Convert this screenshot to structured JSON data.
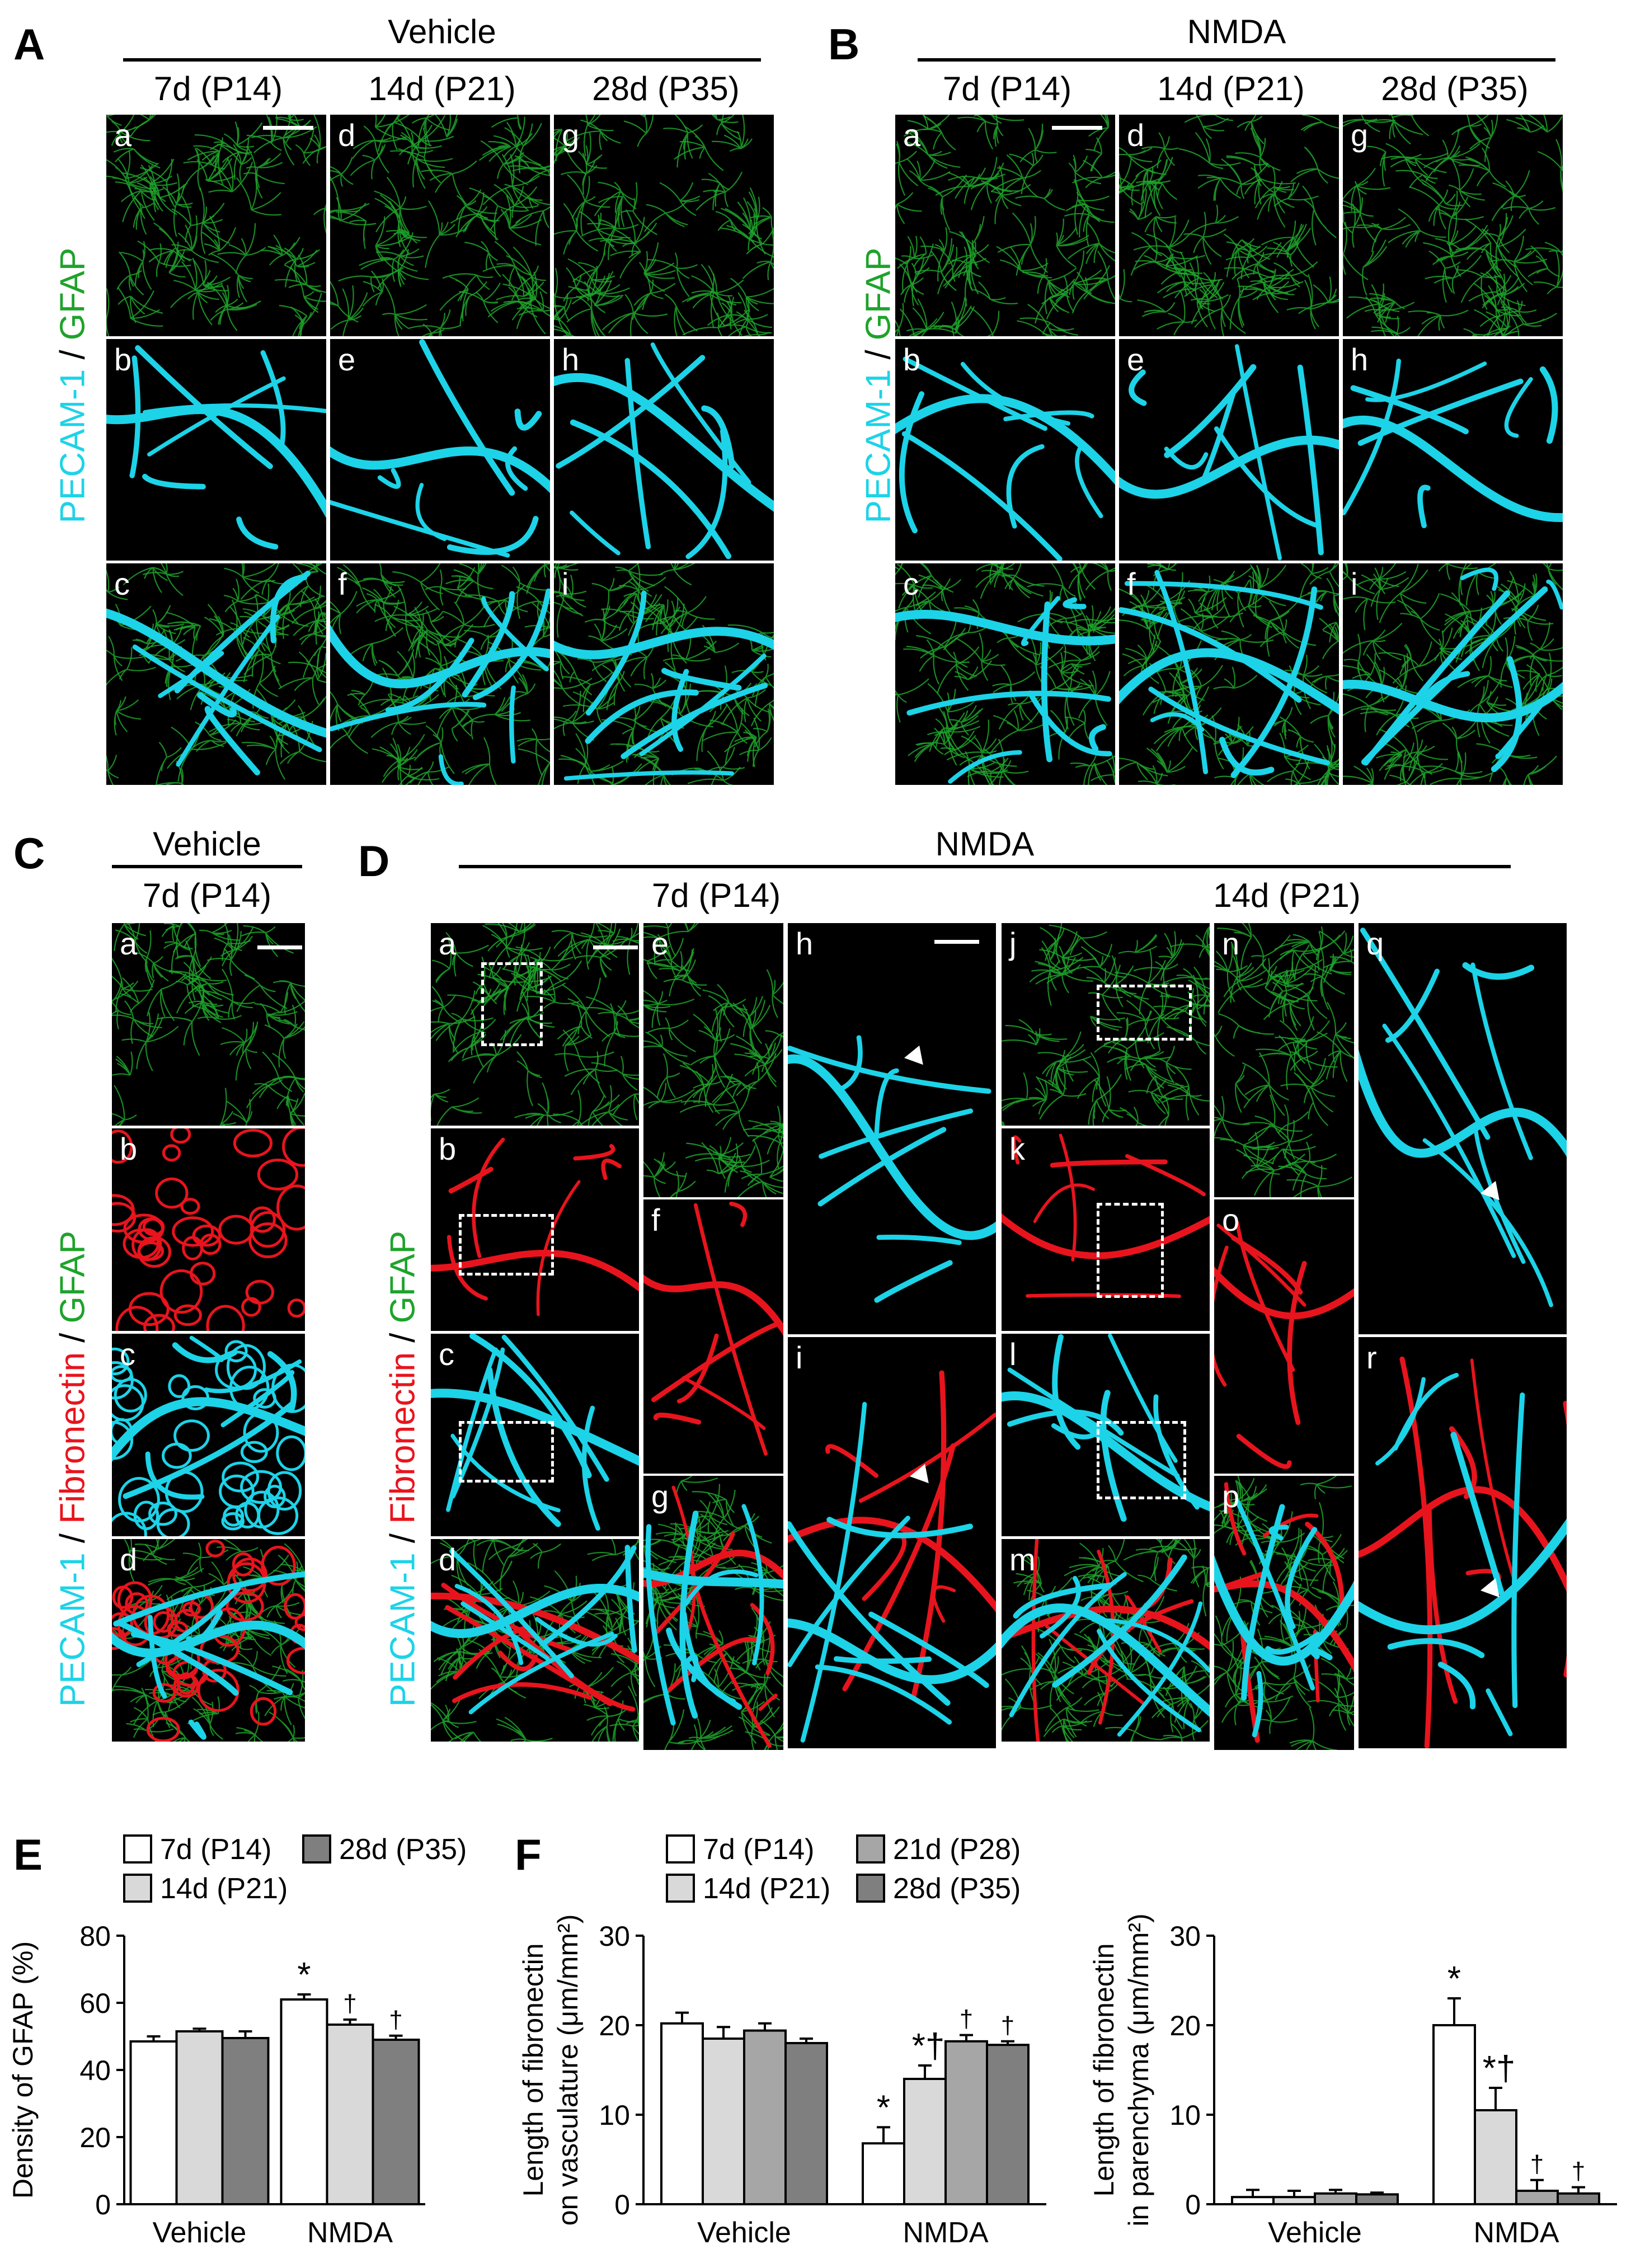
{
  "colors": {
    "pecam": "#1dd3e8",
    "gfap": "#1ea32b",
    "fibronectin": "#e8141d",
    "p14": "#ffffff",
    "p21": "#d9d9d9",
    "p28": "#a6a6a6",
    "p35": "#7f7f7f"
  },
  "panelA": {
    "label": "A",
    "group": "Vehicle",
    "cols": [
      "7d (P14)",
      "14d (P21)",
      "28d (P35)"
    ],
    "tiles": [
      [
        "a",
        "d",
        "g"
      ],
      [
        "b",
        "e",
        "h"
      ],
      [
        "c",
        "f",
        "i"
      ]
    ],
    "ylabel_pecam": "PECAM-1",
    "ylabel_sep": " / ",
    "ylabel_gfap": "GFAP"
  },
  "panelB": {
    "label": "B",
    "group": "NMDA",
    "cols": [
      "7d (P14)",
      "14d (P21)",
      "28d (P35)"
    ],
    "tiles": [
      [
        "a",
        "d",
        "g"
      ],
      [
        "b",
        "e",
        "h"
      ],
      [
        "c",
        "f",
        "i"
      ]
    ],
    "ylabel_pecam": "PECAM-1",
    "ylabel_sep": " / ",
    "ylabel_gfap": "GFAP"
  },
  "panelC": {
    "label": "C",
    "group": "Vehicle",
    "col": "7d (P14)",
    "tiles": [
      "a",
      "b",
      "c",
      "d"
    ],
    "ylabel_pecam": "PECAM-1",
    "ylabel_sep1": " / ",
    "ylabel_fib": "Fibronectin",
    "ylabel_sep2": " / ",
    "ylabel_gfap": "GFAP"
  },
  "panelD": {
    "label": "D",
    "group": "NMDA",
    "col1": "7d (P14)",
    "col2": "14d (P21)",
    "tiles": [
      "a",
      "b",
      "c",
      "d",
      "e",
      "f",
      "g",
      "h",
      "i",
      "j",
      "k",
      "l",
      "m",
      "n",
      "o",
      "p",
      "q",
      "r"
    ],
    "ylabel_pecam": "PECAM-1",
    "ylabel_sep1": " / ",
    "ylabel_fib": "Fibronectin",
    "ylabel_sep2": " / ",
    "ylabel_gfap": "GFAP"
  },
  "panelE": {
    "label": "E",
    "legend": [
      "7d (P14)",
      "28d (P35)",
      "14d (P21)"
    ]
  },
  "panelF": {
    "label": "F",
    "legend": [
      "7d (P14)",
      "21d (P28)",
      "14d (P21)",
      "28d (P35)"
    ]
  },
  "chart_data": [
    {
      "type": "bar",
      "ylabel": "Density of GFAP (%)",
      "ylim": [
        0,
        80
      ],
      "yticks": [
        0,
        20,
        40,
        60,
        80
      ],
      "categories": [
        "Vehicle",
        "NMDA"
      ],
      "series": [
        {
          "name": "7d (P14)",
          "values": [
            48.5,
            61
          ],
          "errors": [
            1.5,
            1.5
          ],
          "marks": [
            "",
            "*"
          ]
        },
        {
          "name": "14d (P21)",
          "values": [
            51.5,
            53.5
          ],
          "errors": [
            0.8,
            1.5
          ],
          "marks": [
            "",
            "†"
          ]
        },
        {
          "name": "28d (P35)",
          "values": [
            49.5,
            49
          ],
          "errors": [
            2,
            1.2
          ],
          "marks": [
            "",
            "†"
          ]
        }
      ]
    },
    {
      "type": "bar",
      "ylabel": "Length of fibronectin on vasculature (μm/mm²)",
      "ylim": [
        0,
        30
      ],
      "yticks": [
        0,
        10,
        20,
        30
      ],
      "categories": [
        "Vehicle",
        "NMDA"
      ],
      "series": [
        {
          "name": "7d (P14)",
          "values": [
            20.2,
            6.8
          ],
          "errors": [
            1.2,
            1.8
          ],
          "marks": [
            "",
            "*"
          ]
        },
        {
          "name": "14d (P21)",
          "values": [
            18.5,
            14
          ],
          "errors": [
            1.3,
            1.5
          ],
          "marks": [
            "",
            "*†"
          ]
        },
        {
          "name": "21d (P28)",
          "values": [
            19.4,
            18.2
          ],
          "errors": [
            0.8,
            0.7
          ],
          "marks": [
            "",
            "†"
          ]
        },
        {
          "name": "28d (P35)",
          "values": [
            18,
            17.8
          ],
          "errors": [
            0.5,
            0.4
          ],
          "marks": [
            "",
            "†"
          ]
        }
      ]
    },
    {
      "type": "bar",
      "ylabel": "Length of fibronectin in parenchyma (μm/mm²)",
      "ylim": [
        0,
        30
      ],
      "yticks": [
        0,
        10,
        20,
        30
      ],
      "categories": [
        "Vehicle",
        "NMDA"
      ],
      "series": [
        {
          "name": "7d (P14)",
          "values": [
            0.8,
            20
          ],
          "errors": [
            0.8,
            3
          ],
          "marks": [
            "",
            "*"
          ]
        },
        {
          "name": "14d (P21)",
          "values": [
            0.8,
            10.5
          ],
          "errors": [
            0.7,
            2.5
          ],
          "marks": [
            "",
            "*†"
          ]
        },
        {
          "name": "21d (P28)",
          "values": [
            1.2,
            1.5
          ],
          "errors": [
            0.4,
            1.2
          ],
          "marks": [
            "",
            "†"
          ]
        },
        {
          "name": "28d (P35)",
          "values": [
            1.1,
            1.2
          ],
          "errors": [
            0.2,
            0.7
          ],
          "marks": [
            "",
            "†"
          ]
        }
      ]
    }
  ]
}
